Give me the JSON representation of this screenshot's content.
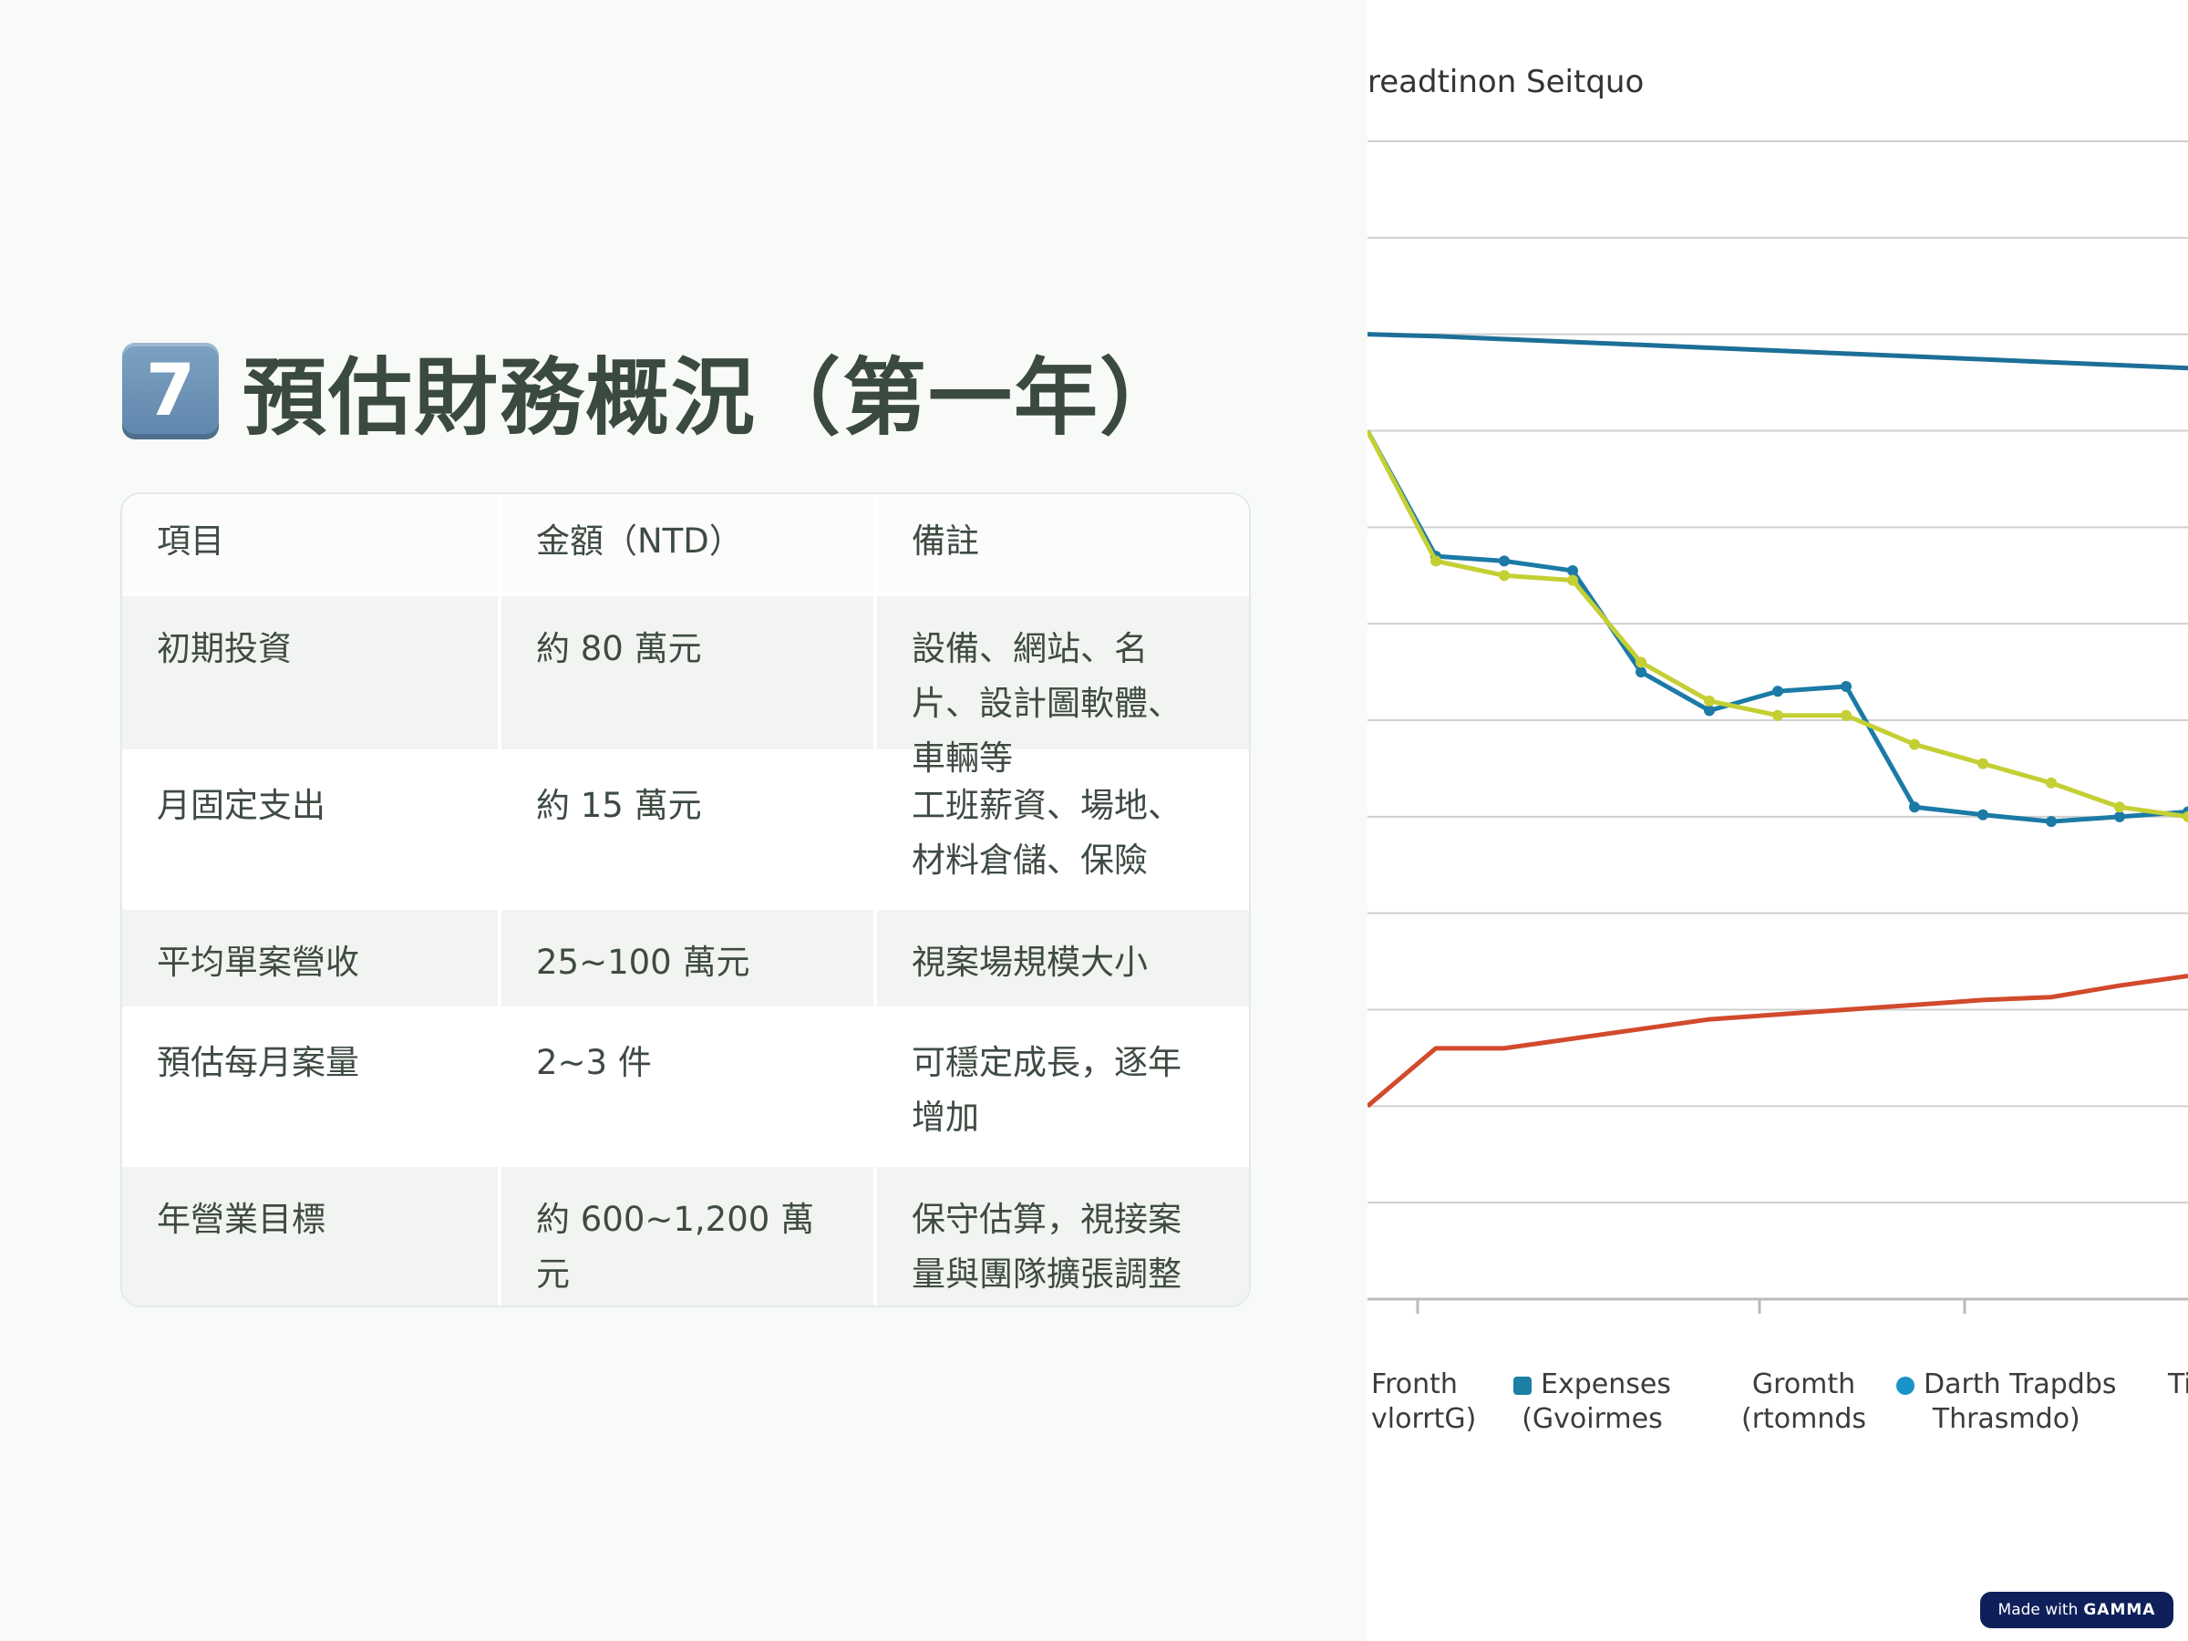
{
  "slide": {
    "number_badge": "7",
    "title": "預估財務概況（第一年）"
  },
  "table": {
    "headers": [
      "項目",
      "金額（NTD）",
      "備註"
    ],
    "rows": [
      {
        "item": "初期投資",
        "amount": "約 80 萬元",
        "note": "設備、網站、名片、設計圖軟體、車輛等"
      },
      {
        "item": "月固定支出",
        "amount": "約 15 萬元",
        "note": "工班薪資、場地、材料倉儲、保險"
      },
      {
        "item": "平均單案營收",
        "amount": "25~100 萬元",
        "note": "視案場規模大小"
      },
      {
        "item": "預估每月案量",
        "amount": "2~3 件",
        "note": "可穩定成長，逐年增加"
      },
      {
        "item": "年營業目標",
        "amount": "約 600~1,200 萬元",
        "note": "保守估算，視接案量與團隊擴張調整"
      }
    ]
  },
  "chart": {
    "title": "readtinon Seitquo",
    "legend": [
      {
        "line1": "Fronth",
        "line2": "vlorrtG)",
        "color": ""
      },
      {
        "line1": "Expenses",
        "line2": "(Gvoirmes",
        "color": "#1b7fa6"
      },
      {
        "line1": "Gromth",
        "line2": "(rtomnds",
        "color": ""
      },
      {
        "line1": "Darth Trapdbs",
        "line2": "Thrasmdo)",
        "color": "#1a93c8"
      },
      {
        "line1": "Ti",
        "line2": "",
        "color": ""
      }
    ],
    "colors": {
      "blue_top": "#1d6f97",
      "blue_main": "#1b7aa6",
      "yellow": "#c4cf33",
      "red": "#d24a2c"
    }
  },
  "chart_data": {
    "type": "line",
    "title": "readtinon Seitquo",
    "x": [
      0,
      1,
      2,
      3,
      4,
      5,
      6,
      7,
      8,
      9,
      10,
      11,
      12
    ],
    "series": [
      {
        "name": "",
        "values": [
          100,
          99.8,
          99.5,
          99.2,
          98.9,
          98.6,
          98.3,
          98.0,
          97.7,
          97.4,
          97.1,
          96.8,
          96.5
        ]
      },
      {
        "name": "Darth Trapdbs",
        "values": [
          90,
          77,
          76.5,
          75.5,
          65,
          61,
          63,
          63.5,
          51,
          50.2,
          49.5,
          50,
          50.5
        ]
      },
      {
        "name": "Expenses",
        "values": [
          90,
          76.5,
          75,
          74.5,
          66,
          62,
          60.5,
          60.5,
          57.5,
          55.5,
          53.5,
          51,
          50
        ]
      },
      {
        "name": "Gromth",
        "values": [
          20,
          26,
          26,
          27,
          28,
          29,
          29.5,
          30,
          30.5,
          31,
          31.3,
          32.5,
          33.5
        ]
      }
    ],
    "ylim": [
      0,
      120
    ],
    "grid": true
  }
}
